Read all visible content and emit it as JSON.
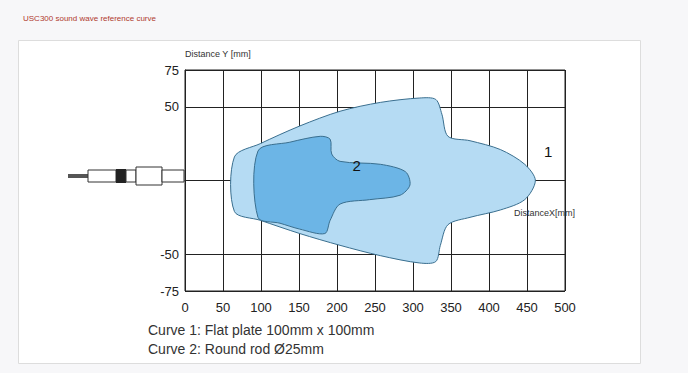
{
  "chart_data": {
    "type": "area",
    "title": "USC300 sound wave reference curve",
    "xlabel": "DistanceX[mm]",
    "ylabel": "Distance Y [mm]",
    "xlim": [
      0,
      500
    ],
    "xticks": [
      0,
      50,
      100,
      150,
      200,
      250,
      300,
      350,
      400,
      450,
      500
    ],
    "ylim": [
      -75,
      75
    ],
    "yticks": [
      -75,
      -50,
      50,
      75
    ],
    "grid": true,
    "series": [
      {
        "name": "Curve 1: Flat plate 100mm x 100mm",
        "color": "#b5dbf3",
        "x": [
          65,
          99,
          151,
          204,
          257,
          309,
          330,
          338,
          346,
          375,
          415,
          447,
          461,
          447,
          415,
          375,
          346,
          336,
          330,
          309,
          257,
          204,
          151,
          99,
          65
        ],
        "y": [
          16,
          25,
          37,
          47,
          53,
          56,
          55,
          45,
          30,
          27,
          21,
          11,
          0,
          -13,
          -20,
          -25,
          -30,
          -44,
          -55,
          -56,
          -51,
          -44,
          -36,
          -27,
          -21
        ]
      },
      {
        "name": "Curve 2: Round rod Ø25mm",
        "color": "#6cb5e6",
        "x": [
          96,
          138,
          178,
          191,
          193,
          204,
          257,
          290,
          296,
          283,
          243,
          204,
          191,
          184,
          151,
          125,
          96
        ],
        "y": [
          20,
          26,
          30,
          28,
          18,
          13,
          11,
          6,
          -3,
          -10,
          -13,
          -16,
          -27,
          -36,
          -33,
          -29,
          -25
        ]
      }
    ],
    "annotations": [
      {
        "text": "1",
        "x": 478,
        "y": 20
      },
      {
        "text": "2",
        "x": 226,
        "y": 10
      }
    ]
  }
}
